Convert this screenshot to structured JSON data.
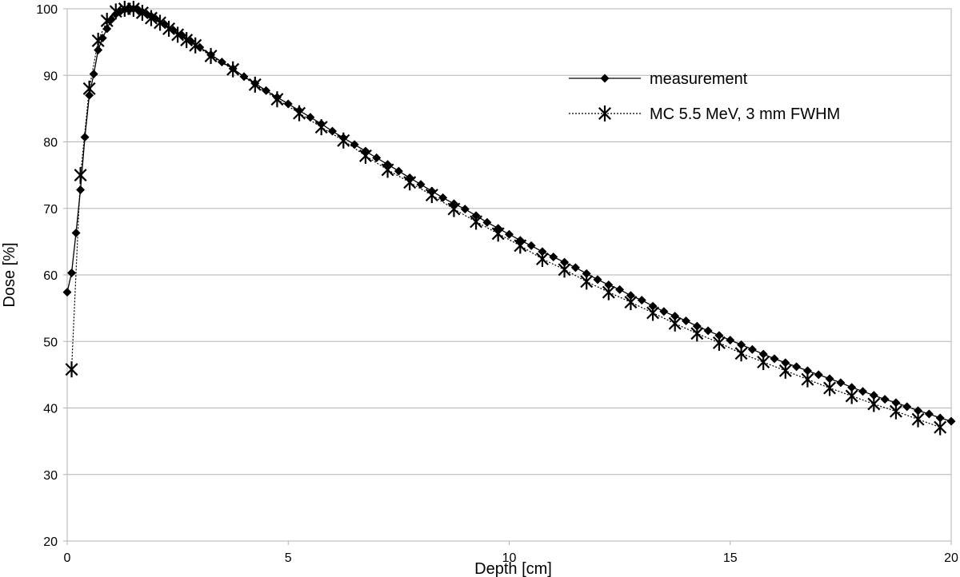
{
  "chart_data": {
    "type": "line",
    "title": "",
    "xlabel": "Depth [cm]",
    "ylabel": "Dose [%]",
    "xlim": [
      0,
      20
    ],
    "ylim": [
      20,
      100
    ],
    "x_ticks": [
      0,
      5,
      10,
      15,
      20
    ],
    "y_ticks": [
      20,
      30,
      40,
      50,
      60,
      70,
      80,
      90,
      100
    ],
    "grid": {
      "horizontal": true,
      "vertical": false,
      "color": "#b3b3b3"
    },
    "legend": {
      "position": "top-right"
    },
    "series": [
      {
        "name": "measurement",
        "line_style": "solid",
        "marker": "diamond",
        "color": "#000000",
        "points": [
          [
            0.0,
            57.4
          ],
          [
            0.1,
            60.3
          ],
          [
            0.2,
            66.3
          ],
          [
            0.3,
            72.8
          ],
          [
            0.4,
            80.7
          ],
          [
            0.5,
            87.0
          ],
          [
            0.6,
            90.2
          ],
          [
            0.7,
            93.8
          ],
          [
            0.8,
            95.6
          ],
          [
            0.9,
            97.0
          ],
          [
            1.0,
            98.4
          ],
          [
            1.1,
            99.2
          ],
          [
            1.2,
            99.6
          ],
          [
            1.3,
            99.9
          ],
          [
            1.4,
            100.0
          ],
          [
            1.5,
            100.0
          ],
          [
            1.6,
            99.9
          ],
          [
            1.7,
            99.5
          ],
          [
            1.8,
            99.2
          ],
          [
            1.9,
            98.9
          ],
          [
            2.0,
            98.5
          ],
          [
            2.2,
            97.7
          ],
          [
            2.4,
            96.8
          ],
          [
            2.6,
            96.0
          ],
          [
            2.8,
            95.1
          ],
          [
            3.0,
            94.2
          ],
          [
            3.25,
            93.1
          ],
          [
            3.5,
            92.0
          ],
          [
            3.75,
            91.0
          ],
          [
            4.0,
            89.8
          ],
          [
            4.25,
            88.8
          ],
          [
            4.5,
            87.7
          ],
          [
            4.75,
            86.7
          ],
          [
            5.0,
            85.7
          ],
          [
            5.25,
            84.7
          ],
          [
            5.5,
            83.7
          ],
          [
            5.75,
            82.7
          ],
          [
            6.0,
            81.6
          ],
          [
            6.25,
            80.6
          ],
          [
            6.5,
            79.6
          ],
          [
            6.75,
            78.6
          ],
          [
            7.0,
            77.6
          ],
          [
            7.25,
            76.6
          ],
          [
            7.5,
            75.6
          ],
          [
            7.75,
            74.6
          ],
          [
            8.0,
            73.6
          ],
          [
            8.25,
            72.6
          ],
          [
            8.5,
            71.6
          ],
          [
            8.75,
            70.7
          ],
          [
            9.0,
            69.9
          ],
          [
            9.25,
            68.9
          ],
          [
            9.5,
            67.9
          ],
          [
            9.75,
            67.0
          ],
          [
            10.0,
            66.1
          ],
          [
            10.25,
            65.2
          ],
          [
            10.5,
            64.4
          ],
          [
            10.75,
            63.5
          ],
          [
            11.0,
            62.7
          ],
          [
            11.25,
            61.9
          ],
          [
            11.5,
            61.1
          ],
          [
            11.75,
            60.2
          ],
          [
            12.0,
            59.3
          ],
          [
            12.25,
            58.5
          ],
          [
            12.5,
            57.8
          ],
          [
            12.75,
            56.9
          ],
          [
            13.0,
            56.2
          ],
          [
            13.25,
            55.3
          ],
          [
            13.5,
            54.5
          ],
          [
            13.75,
            53.8
          ],
          [
            14.0,
            53.1
          ],
          [
            14.25,
            52.3
          ],
          [
            14.5,
            51.6
          ],
          [
            14.75,
            50.9
          ],
          [
            15.0,
            50.2
          ],
          [
            15.25,
            49.5
          ],
          [
            15.5,
            48.8
          ],
          [
            15.75,
            48.1
          ],
          [
            16.0,
            47.4
          ],
          [
            16.25,
            46.8
          ],
          [
            16.5,
            46.2
          ],
          [
            16.75,
            45.6
          ],
          [
            17.0,
            45.0
          ],
          [
            17.25,
            44.4
          ],
          [
            17.5,
            43.8
          ],
          [
            17.75,
            43.1
          ],
          [
            18.0,
            42.5
          ],
          [
            18.25,
            41.9
          ],
          [
            18.5,
            41.3
          ],
          [
            18.75,
            40.8
          ],
          [
            19.0,
            40.2
          ],
          [
            19.25,
            39.6
          ],
          [
            19.5,
            39.1
          ],
          [
            19.75,
            38.5
          ],
          [
            20.0,
            38.0
          ]
        ]
      },
      {
        "name": "MC 5.5 MeV, 3 mm FWHM",
        "line_style": "dotted",
        "marker": "asterisk",
        "color": "#000000",
        "points": [
          [
            0.1,
            45.8
          ],
          [
            0.3,
            75.0
          ],
          [
            0.5,
            88.0
          ],
          [
            0.7,
            95.2
          ],
          [
            0.9,
            98.2
          ],
          [
            1.1,
            99.6
          ],
          [
            1.3,
            100.0
          ],
          [
            1.5,
            100.0
          ],
          [
            1.7,
            99.4
          ],
          [
            1.9,
            98.6
          ],
          [
            2.1,
            97.9
          ],
          [
            2.3,
            97.0
          ],
          [
            2.5,
            96.1
          ],
          [
            2.7,
            95.3
          ],
          [
            2.9,
            94.5
          ],
          [
            3.25,
            92.9
          ],
          [
            3.75,
            90.9
          ],
          [
            4.25,
            88.6
          ],
          [
            4.75,
            86.4
          ],
          [
            5.25,
            84.3
          ],
          [
            5.75,
            82.2
          ],
          [
            6.25,
            80.2
          ],
          [
            6.75,
            77.9
          ],
          [
            7.25,
            75.8
          ],
          [
            7.75,
            73.9
          ],
          [
            8.25,
            72.0
          ],
          [
            8.75,
            69.9
          ],
          [
            9.25,
            68.0
          ],
          [
            9.75,
            66.2
          ],
          [
            10.25,
            64.4
          ],
          [
            10.75,
            62.4
          ],
          [
            11.25,
            60.8
          ],
          [
            11.75,
            59.0
          ],
          [
            12.25,
            57.4
          ],
          [
            12.75,
            55.9
          ],
          [
            13.25,
            54.3
          ],
          [
            13.75,
            52.7
          ],
          [
            14.25,
            51.2
          ],
          [
            14.75,
            49.8
          ],
          [
            15.25,
            48.2
          ],
          [
            15.75,
            46.9
          ],
          [
            16.25,
            45.6
          ],
          [
            16.75,
            44.3
          ],
          [
            17.25,
            43.0
          ],
          [
            17.75,
            41.8
          ],
          [
            18.25,
            40.6
          ],
          [
            18.75,
            39.5
          ],
          [
            19.25,
            38.3
          ],
          [
            19.75,
            37.1
          ]
        ]
      }
    ]
  }
}
